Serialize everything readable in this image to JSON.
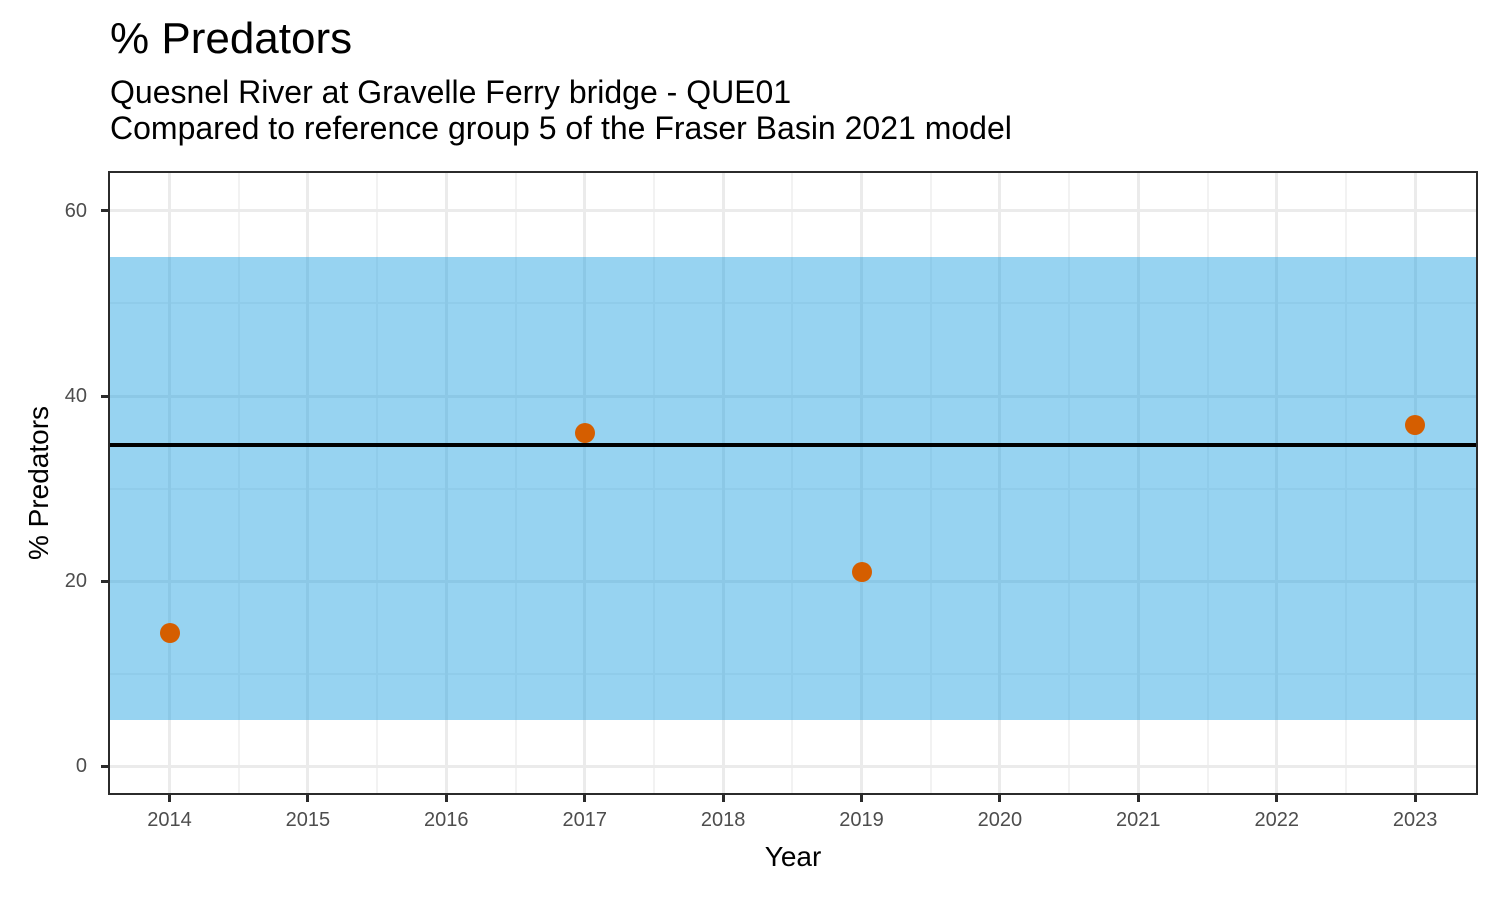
{
  "chart_data": {
    "type": "scatter",
    "title": "% Predators",
    "subtitle_line1": "Quesnel River at Gravelle Ferry bridge - QUE01",
    "subtitle_line2": "Compared to reference group 5 of the Fraser Basin 2021 model",
    "xlabel": "Year",
    "ylabel": "% Predators",
    "x_domain": [
      2013.57,
      2023.44
    ],
    "y_domain": [
      -2.9,
      64.1
    ],
    "x_ticks": [
      2014,
      2015,
      2016,
      2017,
      2018,
      2019,
      2020,
      2021,
      2022,
      2023
    ],
    "x_minor_ticks": [
      2014.5,
      2015.5,
      2016.5,
      2017.5,
      2018.5,
      2019.5,
      2020.5,
      2021.5,
      2022.5
    ],
    "y_ticks": [
      0,
      20,
      40,
      60
    ],
    "y_minor_ticks": [
      10,
      30,
      50
    ],
    "grid": true,
    "legend": "none",
    "reference_band": {
      "low": 5,
      "high": 55,
      "color": "rgba(25,158,223,0.45)"
    },
    "reference_line": {
      "value": 34.7,
      "color": "#000000"
    },
    "series": [
      {
        "name": "% Predators",
        "color": "#D55E00",
        "points": [
          {
            "x": 2014,
            "y": 14.4
          },
          {
            "x": 2017,
            "y": 36
          },
          {
            "x": 2019,
            "y": 21
          },
          {
            "x": 2023,
            "y": 36.9
          }
        ]
      }
    ],
    "colors": {
      "tick_label": "#4d4d4d",
      "axis_line": "#2b2b2b",
      "grid_major": "#ebebeb",
      "grid_minor": "#f2f2f2",
      "background": "#ffffff"
    }
  }
}
